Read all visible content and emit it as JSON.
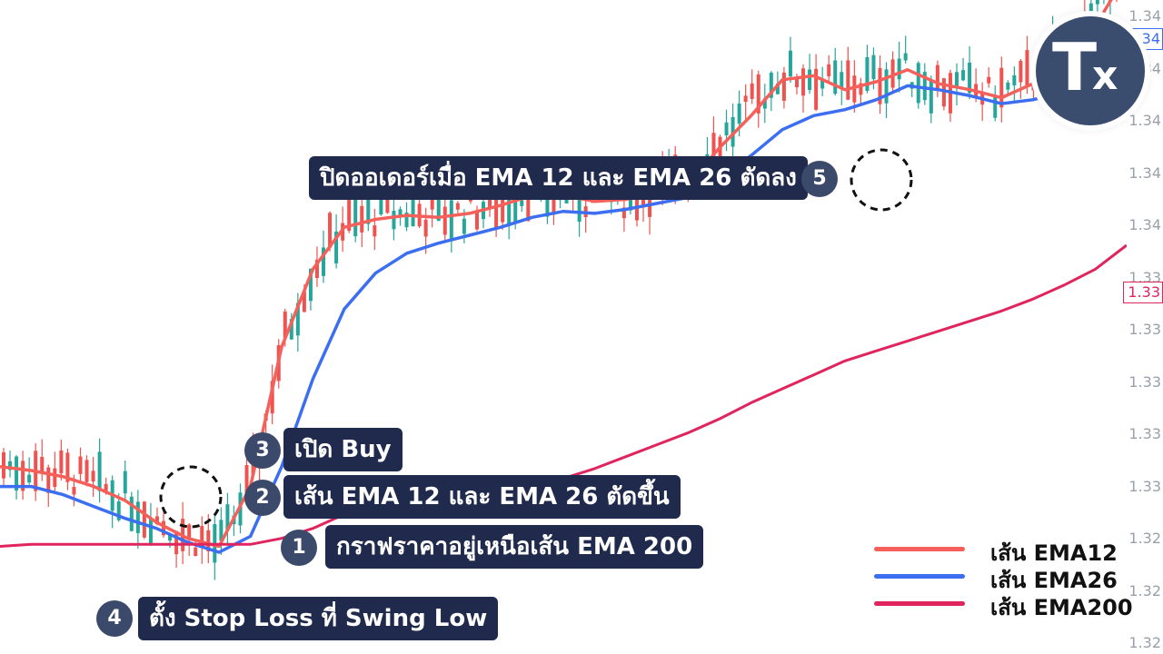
{
  "chart_data": {
    "type": "candlestick",
    "title": "",
    "xlabel": "",
    "ylabel": "",
    "ylim": [
      1.3164,
      1.3492
    ],
    "y_ticks": [
      "1.34",
      "1.34",
      "1.34",
      "1.34",
      "1.34",
      "1.33",
      "1.33",
      "1.33",
      "1.33",
      "1.33",
      "1.32",
      "1.32",
      "1.32"
    ],
    "price_labels": [
      {
        "text": "1.34",
        "color": "#3b6ef0"
      },
      {
        "text": "1.33",
        "color": "#e0245e"
      }
    ],
    "series": [
      {
        "name": "เส้น EMA12",
        "color": "#f5605a",
        "values": [
          1.3258,
          1.3256,
          1.3253,
          1.3248,
          1.3241,
          1.323,
          1.3222,
          1.3218,
          1.3248,
          1.3318,
          1.3357,
          1.3378,
          1.3382,
          1.3384,
          1.3383,
          1.3385,
          1.3389,
          1.3394,
          1.3394,
          1.3391,
          1.3392,
          1.3395,
          1.34,
          1.3418,
          1.3434,
          1.3452,
          1.3454,
          1.3447,
          1.3451,
          1.3457,
          1.345,
          1.3447,
          1.3443,
          1.345,
          1.3462,
          1.3479,
          1.3505
        ]
      },
      {
        "name": "เส้น EMA26",
        "color": "#3b6ef0",
        "values": [
          1.3248,
          1.3248,
          1.3244,
          1.3238,
          1.3232,
          1.3227,
          1.322,
          1.3215,
          1.3223,
          1.3258,
          1.3302,
          1.3337,
          1.3355,
          1.3365,
          1.337,
          1.3374,
          1.3378,
          1.3383,
          1.3386,
          1.3385,
          1.3387,
          1.339,
          1.3393,
          1.3402,
          1.3414,
          1.3427,
          1.3434,
          1.3437,
          1.3442,
          1.3449,
          1.3447,
          1.3444,
          1.344,
          1.3442,
          1.3446,
          1.3455,
          1.347
        ]
      },
      {
        "name": "เส้น EMA200",
        "color": "#e0245e",
        "values": [
          1.3218,
          1.3219,
          1.3219,
          1.3219,
          1.3219,
          1.3219,
          1.3219,
          1.3219,
          1.3219,
          1.3222,
          1.3227,
          1.3234,
          1.324,
          1.3244,
          1.3246,
          1.3247,
          1.3248,
          1.325,
          1.3252,
          1.3257,
          1.3263,
          1.3269,
          1.3275,
          1.3282,
          1.329,
          1.3297,
          1.3304,
          1.3311,
          1.3316,
          1.3321,
          1.3326,
          1.3331,
          1.3336,
          1.3342,
          1.3349,
          1.3357,
          1.3369
        ]
      }
    ],
    "up_color": "#26a69a",
    "down_color": "#ef5350",
    "candles_note": "",
    "callouts": [
      {
        "number": "5",
        "text": "ปิดออเดอร์เมื่อ EMA 12 และ EMA 26 ตัดลง"
      },
      {
        "number": "3",
        "text": "เปิด Buy"
      },
      {
        "number": "2",
        "text": "เส้น EMA 12 และ EMA 26 ตัดขึ้น"
      },
      {
        "number": "1",
        "text": "กราฟราคาอยู่เหนือเส้น EMA 200"
      },
      {
        "number": "4",
        "text": "ตั้ง Stop Loss ที่ Swing Low"
      }
    ],
    "logo": {
      "big": "T",
      "small": "x"
    }
  }
}
